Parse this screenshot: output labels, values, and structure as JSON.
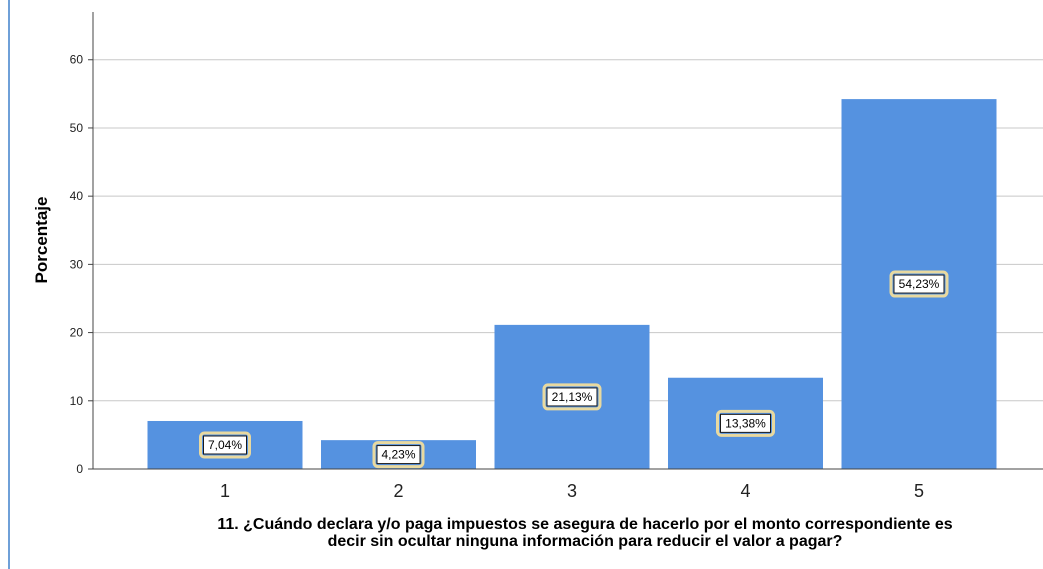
{
  "chart_data": {
    "type": "bar",
    "categories": [
      "1",
      "2",
      "3",
      "4",
      "5"
    ],
    "values": [
      7.04,
      4.23,
      21.13,
      13.38,
      54.23
    ],
    "data_labels": [
      "7,04%",
      "4,23%",
      "21,13%",
      "13,38%",
      "54,23%"
    ],
    "ylabel": "Porcentaje",
    "xlabel_lines": [
      "11. ¿Cuándo declara y/o paga impuestos se asegura de hacerlo por el monto correspondiente es",
      "decir sin ocultar ninguna información para reducir el valor a pagar?"
    ],
    "yticks": [
      0,
      10,
      20,
      30,
      40,
      50,
      60
    ],
    "ylim": [
      0,
      67
    ],
    "grid": true,
    "bar_color": "#5592e0",
    "grid_color": "#c8c8c8",
    "label_border_color": "#e8d9a0"
  }
}
